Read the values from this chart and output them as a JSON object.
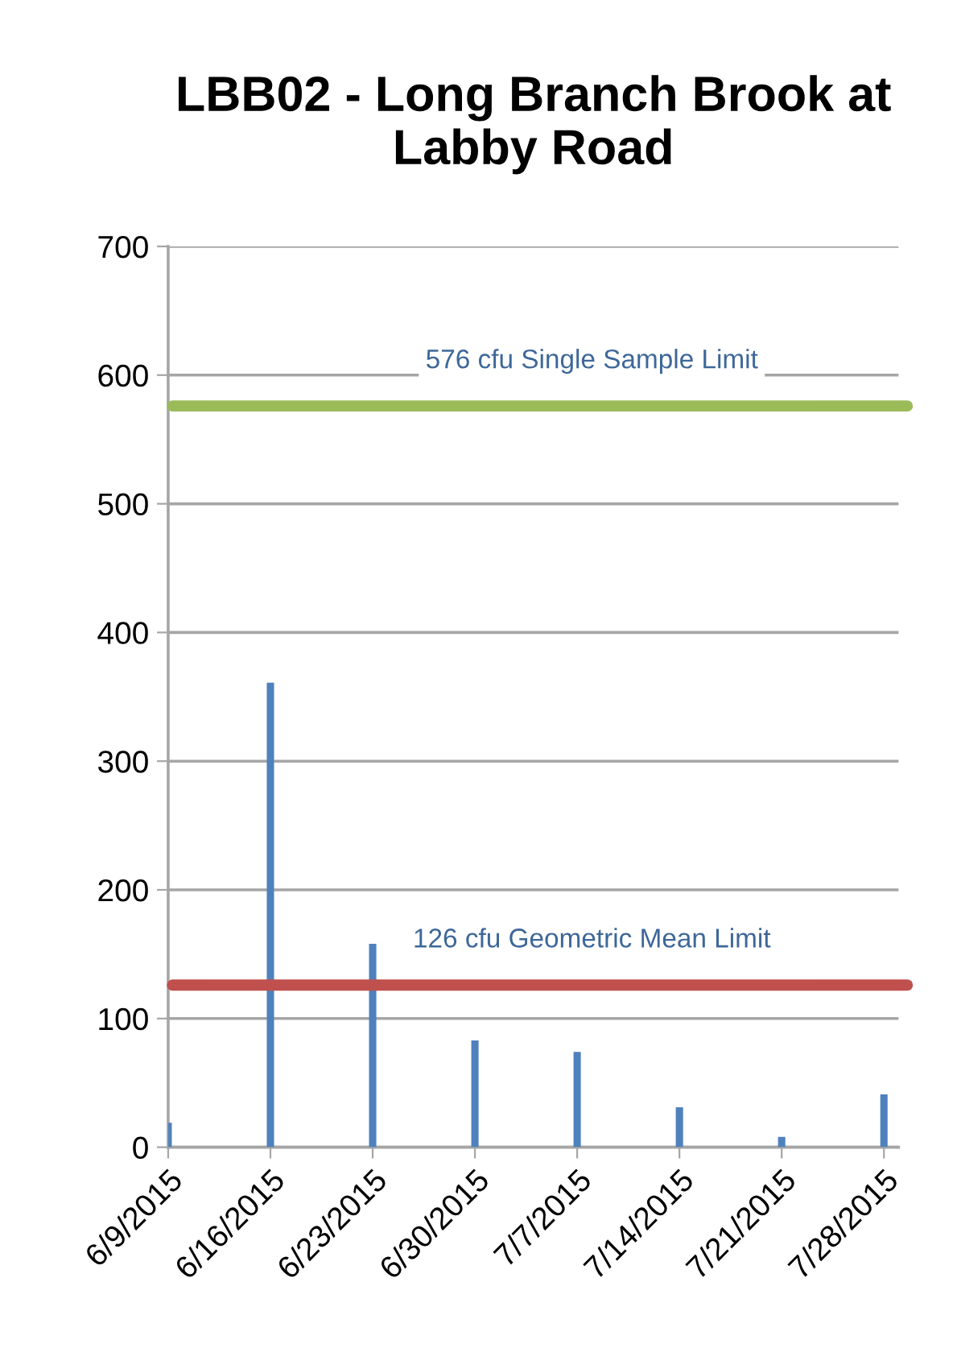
{
  "chart_data": {
    "type": "bar",
    "title": "LBB02 - Long Branch Brook at Labby Road",
    "x": [
      "2015-06-09",
      "2015-06-16",
      "2015-06-23",
      "2015-06-30",
      "2015-07-07",
      "2015-07-14",
      "2015-07-21",
      "2015-07-28"
    ],
    "values": [
      19,
      361,
      158,
      83,
      74,
      31,
      8,
      41
    ],
    "color": "#4f81bd",
    "xlim": [
      "2015-06-09",
      "2015-07-29"
    ],
    "xticks": [
      {
        "value": "2015-06-09",
        "label": "6/9/2015"
      },
      {
        "value": "2015-06-16",
        "label": "6/16/2015"
      },
      {
        "value": "2015-06-23",
        "label": "6/23/2015"
      },
      {
        "value": "2015-06-30",
        "label": "6/30/2015"
      },
      {
        "value": "2015-07-07",
        "label": "7/7/2015"
      },
      {
        "value": "2015-07-14",
        "label": "7/14/2015"
      },
      {
        "value": "2015-07-21",
        "label": "7/21/2015"
      },
      {
        "value": "2015-07-28",
        "label": "7/28/2015"
      }
    ],
    "ylim": [
      0,
      700
    ],
    "yticks": [
      0,
      100,
      200,
      300,
      400,
      500,
      600,
      700
    ],
    "grid": "y",
    "legend": false,
    "ref_lines": [
      {
        "axis": "y",
        "value": 576,
        "label": "576 cfu Single Sample Limit",
        "color": "#9bbb59"
      },
      {
        "axis": "y",
        "value": 126,
        "label": "126 cfu Geometric Mean Limit",
        "color": "#c0504d"
      }
    ]
  }
}
